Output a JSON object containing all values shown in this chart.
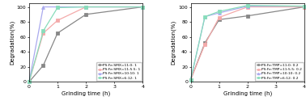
{
  "left": {
    "x": [
      0,
      0.5,
      1,
      2,
      4
    ],
    "series": [
      {
        "label": "PS:Fe:SMX=11:0: 1",
        "color": "#888888",
        "marker": "s",
        "y": [
          0,
          22,
          65,
          90,
          100
        ]
      },
      {
        "label": "PS:Fe:SMX=11:5.5: 1",
        "color": "#F4AAAA",
        "marker": "s",
        "y": [
          0,
          65,
          82,
          100,
          100
        ]
      },
      {
        "label": "PS:Fe:SMX=10:10: 1",
        "color": "#AAAAEE",
        "marker": "^",
        "y": [
          0,
          100,
          100,
          100,
          100
        ]
      },
      {
        "label": "PS:Fe:SMX=6:12: 1",
        "color": "#88DDBB",
        "marker": "s",
        "y": [
          0,
          68,
          99,
          100,
          100
        ]
      }
    ],
    "xlabel": "Grinding time (h)",
    "ylabel": "Degradation(%)",
    "xlim": [
      0,
      4
    ],
    "ylim": [
      0,
      105
    ],
    "xticks": [
      0,
      1,
      2,
      3,
      4
    ],
    "yticks": [
      0,
      20,
      40,
      60,
      80,
      100
    ]
  },
  "right": {
    "x": [
      0,
      0.5,
      1,
      2,
      4
    ],
    "series": [
      {
        "label": "PS:Fe:TMP=11:0: 0.2",
        "color": "#888888",
        "marker": "s",
        "y": [
          3,
          52,
          83,
          88,
          100
        ]
      },
      {
        "label": "PS:Fe:TMP=11:5.5: 0.2",
        "color": "#F4AAAA",
        "marker": "s",
        "y": [
          3,
          50,
          86,
          100,
          100
        ]
      },
      {
        "label": "PS:Fe:TMP=10:10: 0.2",
        "color": "#AAAAEE",
        "marker": "^",
        "y": [
          3,
          87,
          92,
          101,
          101
        ]
      },
      {
        "label": "PS:Fe:TMP=6:12: 0.2",
        "color": "#88DDBB",
        "marker": "s",
        "y": [
          3,
          87,
          94,
          102,
          101
        ]
      }
    ],
    "xlabel": "Grinding time (h)",
    "ylabel": "Degradation(%)",
    "xlim": [
      0,
      4
    ],
    "ylim": [
      0,
      105
    ],
    "xticks": [
      0,
      1,
      2,
      3,
      4
    ],
    "yticks": [
      0,
      20,
      40,
      60,
      80,
      100
    ]
  }
}
